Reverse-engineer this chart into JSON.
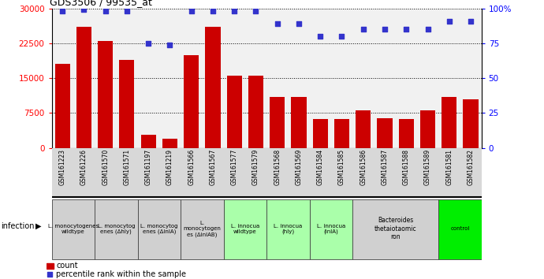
{
  "title": "GDS3506 / 99535_at",
  "samples": [
    "GSM161223",
    "GSM161226",
    "GSM161570",
    "GSM161571",
    "GSM161197",
    "GSM161219",
    "GSM161566",
    "GSM161567",
    "GSM161577",
    "GSM161579",
    "GSM161568",
    "GSM161569",
    "GSM161584",
    "GSM161585",
    "GSM161586",
    "GSM161587",
    "GSM161588",
    "GSM161589",
    "GSM161581",
    "GSM161582"
  ],
  "counts": [
    18000,
    26000,
    23000,
    19000,
    2800,
    2000,
    20000,
    26000,
    15500,
    15500,
    11000,
    11000,
    6200,
    6200,
    8000,
    6400,
    6200,
    8000,
    11000,
    10500
  ],
  "percentiles": [
    98,
    99,
    98,
    98,
    75,
    74,
    98,
    98,
    98,
    98,
    89,
    89,
    80,
    80,
    85,
    85,
    85,
    85,
    91,
    91
  ],
  "bar_color": "#cc0000",
  "dot_color": "#3333cc",
  "ylim_left": [
    0,
    30000
  ],
  "ylim_right": [
    0,
    100
  ],
  "yticks_left": [
    0,
    7500,
    15000,
    22500,
    30000
  ],
  "yticks_right": [
    0,
    25,
    50,
    75,
    100
  ],
  "groups": [
    {
      "label": "L. monocytogenes\nwildtype",
      "start": 0,
      "end": 2,
      "color": "#d0d0d0"
    },
    {
      "label": "L. monocytog\nenes (Δhly)",
      "start": 2,
      "end": 4,
      "color": "#d0d0d0"
    },
    {
      "label": "L. monocytog\nenes (ΔinlA)",
      "start": 4,
      "end": 6,
      "color": "#d0d0d0"
    },
    {
      "label": "L.\nmonocytogen\nes (ΔinlAB)",
      "start": 6,
      "end": 8,
      "color": "#d0d0d0"
    },
    {
      "label": "L. innocua\nwildtype",
      "start": 8,
      "end": 10,
      "color": "#aaffaa"
    },
    {
      "label": "L. innocua\n(hly)",
      "start": 10,
      "end": 12,
      "color": "#aaffaa"
    },
    {
      "label": "L. innocua\n(inlA)",
      "start": 12,
      "end": 14,
      "color": "#aaffaa"
    },
    {
      "label": "Bacteroides\nthetaiotaomic\nron",
      "start": 14,
      "end": 18,
      "color": "#d0d0d0"
    },
    {
      "label": "control",
      "start": 18,
      "end": 20,
      "color": "#00ee00"
    }
  ],
  "infection_label": "infection",
  "legend_count_label": "count",
  "legend_pct_label": "percentile rank within the sample",
  "col_bg_color": "#d8d8d8"
}
